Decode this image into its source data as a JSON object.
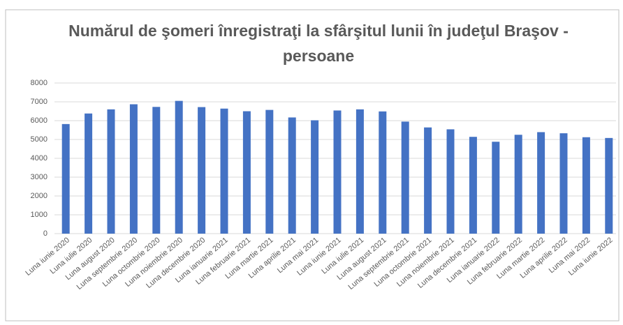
{
  "chart_data": {
    "type": "bar",
    "title": "Numărul de şomeri înregistraţi la sfârşitul lunii în judeţul Braşov - persoane",
    "categories": [
      "Luna iunie 2020",
      "Luna iulie 2020",
      "Luna august 2020",
      "Luna septembrie 2020",
      "Luna octombrie 2020",
      "Luna noiembrie 2020",
      "Luna decembrie 2020",
      "Luna ianuarie 2021",
      "Luna februarie 2021",
      "Luna martie 2021",
      "Luna aprilie 2021",
      "Luna mai 2021",
      "Luna iunie 2021",
      "Luna iulie 2021",
      "Luna august 2021",
      "Luna septembrie 2021",
      "Luna octombrie 2021",
      "Luna noiembrie 2021",
      "Luna decembrie 2021",
      "Luna ianuarie 2022",
      "Luna februarie 2022",
      "Luna martie 2022",
      "Luna aprilie 2022",
      "Luna mai 2022",
      "Luna iunie 2022"
    ],
    "values": [
      5820,
      6380,
      6600,
      6870,
      6730,
      7050,
      6720,
      6640,
      6500,
      6570,
      6170,
      6020,
      6540,
      6600,
      6490,
      5950,
      5640,
      5540,
      5140,
      4880,
      5250,
      5390,
      5330,
      5120,
      5080
    ],
    "color": "#4472c4",
    "ylim": [
      0,
      8000
    ],
    "yticks": [
      0,
      1000,
      2000,
      3000,
      4000,
      5000,
      6000,
      7000,
      8000
    ],
    "grid": true
  }
}
